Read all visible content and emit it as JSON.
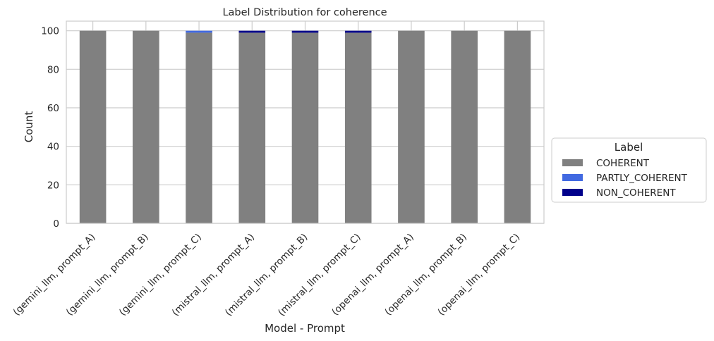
{
  "chart_data": {
    "type": "bar",
    "stacked": true,
    "title": "Label Distribution for coherence",
    "xlabel": "Model - Prompt",
    "ylabel": "Count",
    "ylim": [
      0,
      105
    ],
    "yticks": [
      0,
      20,
      40,
      60,
      80,
      100
    ],
    "grid": true,
    "legend_title": "Label",
    "legend_placement": "center-right outside",
    "categories": [
      "(gemini_llm, prompt_A)",
      "(gemini_llm, prompt_B)",
      "(gemini_llm, prompt_C)",
      "(mistral_llm, prompt_A)",
      "(mistral_llm, prompt_B)",
      "(mistral_llm, prompt_C)",
      "(openai_llm, prompt_A)",
      "(openai_llm, prompt_B)",
      "(openai_llm, prompt_C)"
    ],
    "series": [
      {
        "name": "COHERENT",
        "color": "#808080",
        "values": [
          100,
          100,
          99,
          99,
          99,
          99,
          100,
          100,
          100
        ]
      },
      {
        "name": "PARTLY_COHERENT",
        "color": "#4169e1",
        "values": [
          0,
          0,
          1,
          0,
          0,
          0,
          0,
          0,
          0
        ]
      },
      {
        "name": "NON_COHERENT",
        "color": "#00008b",
        "values": [
          0,
          0,
          0,
          1,
          1,
          1,
          0,
          0,
          0
        ]
      }
    ]
  }
}
